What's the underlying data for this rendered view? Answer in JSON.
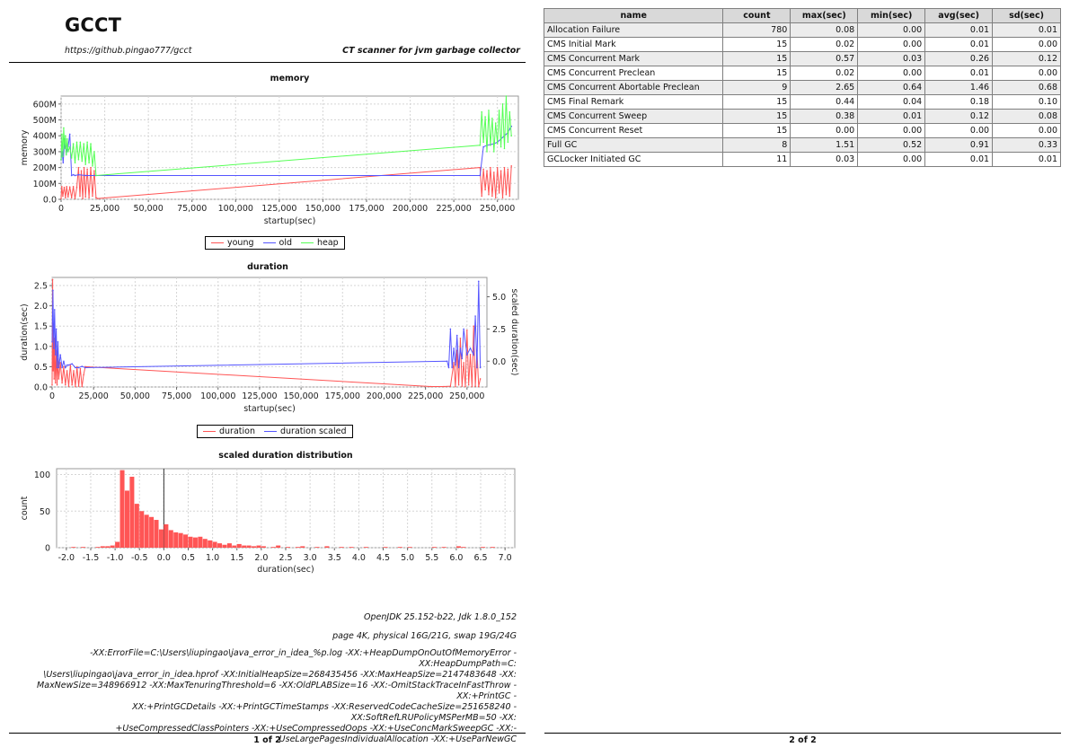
{
  "page1": {
    "title": "GCCT",
    "url": "https://github.pingao777/gcct",
    "tagline": "CT scanner for jvm garbage collector",
    "footer": "1 of 2",
    "jdk_info": "OpenJDK 25.152-b22, Jdk 1.8.0_152",
    "memory_info": "page 4K, physical 16G/21G, swap 19G/24G",
    "jvm_args_lines": [
      "-XX:ErrorFile=C:\\Users\\liupingao\\java_error_in_idea_%p.log -XX:+HeapDumpOnOutOfMemoryError -XX:HeapDumpPath=C:",
      "\\Users\\liupingao\\java_error_in_idea.hprof -XX:InitialHeapSize=268435456 -XX:MaxHeapSize=2147483648 -XX:",
      "MaxNewSize=348966912 -XX:MaxTenuringThreshold=6 -XX:OldPLABSize=16 -XX:-OmitStackTraceInFastThrow -XX:+PrintGC -",
      "XX:+PrintGCDetails -XX:+PrintGCTimeStamps -XX:ReservedCodeCacheSize=251658240 -XX:SoftRefLRUPolicyMSPerMB=50 -XX:",
      "+UseCompressedClassPointers -XX:+UseCompressedOops -XX:+UseConcMarkSweepGC -XX:-",
      "UseLargePagesIndividualAllocation -XX:+UseParNewGC"
    ]
  },
  "page2": {
    "footer": "2 of 2",
    "table": {
      "headers": [
        "name",
        "count",
        "max(sec)",
        "min(sec)",
        "avg(sec)",
        "sd(sec)"
      ],
      "rows": [
        [
          "Allocation Failure",
          "780",
          "0.08",
          "0.00",
          "0.01",
          "0.01"
        ],
        [
          "CMS Initial Mark",
          "15",
          "0.02",
          "0.00",
          "0.01",
          "0.00"
        ],
        [
          "CMS Concurrent Mark",
          "15",
          "0.57",
          "0.03",
          "0.26",
          "0.12"
        ],
        [
          "CMS Concurrent Preclean",
          "15",
          "0.02",
          "0.00",
          "0.01",
          "0.00"
        ],
        [
          "CMS Concurrent Abortable Preclean",
          "9",
          "2.65",
          "0.64",
          "1.46",
          "0.68"
        ],
        [
          "CMS Final Remark",
          "15",
          "0.44",
          "0.04",
          "0.18",
          "0.10"
        ],
        [
          "CMS Concurrent Sweep",
          "15",
          "0.38",
          "0.01",
          "0.12",
          "0.08"
        ],
        [
          "CMS Concurrent Reset",
          "15",
          "0.00",
          "0.00",
          "0.00",
          "0.00"
        ],
        [
          "Full GC",
          "8",
          "1.51",
          "0.52",
          "0.91",
          "0.33"
        ],
        [
          "GCLocker Initiated GC",
          "11",
          "0.03",
          "0.00",
          "0.01",
          "0.01"
        ]
      ]
    }
  },
  "colors": {
    "red": "#ff5555",
    "blue": "#5555ff",
    "green": "#55ff55",
    "grid": "#d0d0d0"
  },
  "chart_data": [
    {
      "type": "line",
      "title": "memory",
      "xlabel": "startup(sec)",
      "ylabel": "memory",
      "xlim": [
        0,
        262000
      ],
      "ylim": [
        0,
        650
      ],
      "xticks": [
        0,
        25000,
        50000,
        75000,
        100000,
        125000,
        150000,
        175000,
        200000,
        225000,
        250000
      ],
      "xtick_labels": [
        "0",
        "25,000",
        "50,000",
        "75,000",
        "100,000",
        "125,000",
        "150,000",
        "175,000",
        "200,000",
        "225,000",
        "250,000"
      ],
      "yticks": [
        0,
        100,
        200,
        300,
        400,
        500,
        600
      ],
      "ytick_labels": [
        "0.0",
        "100M",
        "200M",
        "300M",
        "400M",
        "500M",
        "600M"
      ],
      "legend": [
        "young",
        "old",
        "heap"
      ],
      "legend_position": "bottom",
      "series": [
        {
          "name": "young",
          "color": "#ff5555",
          "x": [
            0,
            400,
            1000,
            1800,
            2500,
            3200,
            4000,
            5000,
            6000,
            7000,
            8000,
            9000,
            10000,
            10800,
            11600,
            12400,
            13200,
            14000,
            15000,
            16000,
            17000,
            18000,
            19000,
            20000,
            21000,
            240000,
            241000,
            242000,
            243000,
            244000,
            245000,
            246000,
            247000,
            248000,
            249000,
            250000,
            251000,
            252000,
            253000,
            254000,
            255000,
            256000,
            257000,
            258000
          ],
          "y": [
            5,
            80,
            20,
            75,
            10,
            80,
            15,
            78,
            10,
            80,
            5,
            75,
            200,
            20,
            180,
            5,
            200,
            15,
            190,
            10,
            200,
            20,
            180,
            10,
            5,
            200,
            20,
            190,
            60,
            180,
            30,
            200,
            20,
            170,
            10,
            200,
            40,
            180,
            10,
            200,
            30,
            190,
            20,
            210
          ]
        },
        {
          "name": "old",
          "color": "#5555ff",
          "x": [
            0,
            600,
            1200,
            2000,
            3000,
            4000,
            5000,
            6000,
            7000,
            8000,
            10000,
            14000,
            20000,
            240000,
            242000,
            244000,
            246000,
            248000,
            250000,
            252000,
            254000,
            256000,
            258000
          ],
          "y": [
            250,
            300,
            230,
            380,
            290,
            330,
            410,
            150,
            155,
            150,
            155,
            150,
            150,
            150,
            330,
            340,
            345,
            350,
            360,
            380,
            400,
            420,
            460
          ]
        },
        {
          "name": "heap",
          "color": "#55ff55",
          "x": [
            0,
            500,
            1000,
            1500,
            2000,
            2500,
            3000,
            3500,
            4000,
            5000,
            6000,
            7000,
            8000,
            9000,
            10000,
            11000,
            12000,
            13000,
            14000,
            15000,
            16000,
            17000,
            18000,
            19000,
            20000,
            240000,
            241000,
            242000,
            243000,
            244000,
            245000,
            246000,
            247000,
            248000,
            249000,
            250000,
            251000,
            252000,
            253000,
            254000,
            255000,
            256000,
            257000,
            258000
          ],
          "y": [
            250,
            410,
            270,
            450,
            320,
            400,
            280,
            380,
            300,
            330,
            260,
            350,
            230,
            360,
            250,
            360,
            240,
            350,
            220,
            360,
            230,
            350,
            210,
            300,
            150,
            340,
            550,
            360,
            520,
            300,
            560,
            340,
            510,
            300,
            480,
            350,
            560,
            330,
            600,
            320,
            650,
            360,
            550,
            400
          ]
        }
      ]
    },
    {
      "type": "line",
      "title": "duration",
      "xlabel": "startup(sec)",
      "ylabel": "duration(sec)",
      "y2label": "scaled duration(sec)",
      "xlim": [
        0,
        262000
      ],
      "ylim": [
        0,
        2.7
      ],
      "y2lim": [
        -2,
        6.5
      ],
      "xticks": [
        0,
        25000,
        50000,
        75000,
        100000,
        125000,
        150000,
        175000,
        200000,
        225000,
        250000
      ],
      "xtick_labels": [
        "0",
        "25,000",
        "50,000",
        "75,000",
        "100,000",
        "125,000",
        "150,000",
        "175,000",
        "200,000",
        "225,000",
        "250,000"
      ],
      "yticks": [
        0,
        0.5,
        1.0,
        1.5,
        2.0,
        2.5
      ],
      "ytick_labels": [
        "0.0",
        "0.5",
        "1.0",
        "1.5",
        "2.0",
        "2.5"
      ],
      "y2ticks": [
        0,
        2.5,
        5.0
      ],
      "y2tick_labels": [
        "0.0",
        "2.5",
        "5.0"
      ],
      "legend": [
        "duration",
        "duration scaled"
      ],
      "legend_position": "bottom",
      "series": [
        {
          "name": "duration",
          "color": "#ff5555",
          "axis": "left",
          "x": [
            0,
            300,
            600,
            900,
            1200,
            1500,
            2000,
            2500,
            3000,
            3500,
            4000,
            5000,
            6000,
            7000,
            8000,
            9000,
            10000,
            11000,
            12000,
            13000,
            14000,
            15000,
            16000,
            17000,
            18000,
            19000,
            20000,
            228000,
            236000,
            240000,
            242000,
            243000,
            244000,
            245000,
            246000,
            247000,
            248000,
            249000,
            250000,
            251000,
            252000,
            253000,
            254000,
            255000,
            256000,
            257000,
            258000
          ],
          "y": [
            0.05,
            2.65,
            0.4,
            1.5,
            0.2,
            1.2,
            0.1,
            0.9,
            0.05,
            0.7,
            0.2,
            0.6,
            0.1,
            0.5,
            0.05,
            0.4,
            0.02,
            0.55,
            0.05,
            0.4,
            0.01,
            0.5,
            0.02,
            0.45,
            0.01,
            0.3,
            0.5,
            0.01,
            0.01,
            0.02,
            0.6,
            0.01,
            0.9,
            0.05,
            1.2,
            0.02,
            0.6,
            0.01,
            1.4,
            0.05,
            0.8,
            0.01,
            1.5,
            0.02,
            0.9,
            0.01,
            0.2
          ]
        },
        {
          "name": "duration scaled",
          "color": "#5555ff",
          "axis": "right",
          "x": [
            0,
            500,
            1000,
            1500,
            2000,
            2500,
            3000,
            3500,
            4000,
            5000,
            6000,
            7000,
            8000,
            9000,
            10000,
            12000,
            14000,
            16000,
            18000,
            20000,
            238000,
            239000,
            240000,
            241000,
            242000,
            243000,
            244000,
            245000,
            246000,
            247000,
            248000,
            250000,
            252000,
            254000,
            255000,
            256000,
            257000,
            258000
          ],
          "y": [
            1.5,
            5.5,
            1.0,
            4.0,
            0.5,
            2.5,
            -0.5,
            1.5,
            -0.5,
            0.5,
            -0.5,
            0.0,
            -0.5,
            -0.3,
            -0.3,
            -0.2,
            -0.5,
            -0.5,
            -0.4,
            -0.5,
            0.0,
            -0.5,
            2.5,
            -0.5,
            1.0,
            -0.3,
            2.0,
            -0.5,
            1.0,
            0.2,
            2.5,
            0.5,
            1.0,
            0.5,
            3.5,
            -0.5,
            6.2,
            -0.5
          ]
        }
      ]
    },
    {
      "type": "bar",
      "title": "scaled duration distribution",
      "xlabel": "duration(sec)",
      "ylabel": "count",
      "xlim": [
        -2.2,
        7.2
      ],
      "ylim": [
        0,
        108
      ],
      "xticks": [
        -2.0,
        -1.5,
        -1.0,
        -0.5,
        0.0,
        0.5,
        1.0,
        1.5,
        2.0,
        2.5,
        3.0,
        3.5,
        4.0,
        4.5,
        5.0,
        5.5,
        6.0,
        6.5,
        7.0
      ],
      "xtick_labels": [
        "-2.0",
        "-1.5",
        "-1.0",
        "-0.5",
        "0.0",
        "0.5",
        "1.0",
        "1.5",
        "2.0",
        "2.5",
        "3.0",
        "3.5",
        "4.0",
        "4.5",
        "5.0",
        "5.5",
        "6.0",
        "6.5",
        "7.0"
      ],
      "yticks": [
        0,
        50,
        100
      ],
      "ytick_labels": [
        "0",
        "50",
        "100"
      ],
      "bin_width": 0.1,
      "bins": [
        -1.9,
        -1.7,
        -1.4,
        -1.3,
        -1.2,
        -1.1,
        -1.0,
        -0.9,
        -0.8,
        -0.7,
        -0.6,
        -0.5,
        -0.4,
        -0.3,
        -0.2,
        -0.1,
        0.0,
        0.1,
        0.2,
        0.3,
        0.4,
        0.5,
        0.6,
        0.7,
        0.8,
        0.9,
        1.0,
        1.1,
        1.2,
        1.3,
        1.4,
        1.5,
        1.6,
        1.7,
        1.8,
        1.9,
        2.0,
        2.2,
        2.3,
        2.5,
        2.7,
        2.8,
        3.1,
        3.3,
        3.6,
        3.8,
        4.1,
        4.5,
        4.8,
        5.0,
        5.5,
        5.7,
        6.0,
        6.1,
        6.5,
        6.7
      ],
      "values": [
        1,
        1,
        1,
        2,
        2,
        3,
        8,
        106,
        78,
        97,
        60,
        50,
        45,
        42,
        38,
        25,
        32,
        24,
        21,
        20,
        18,
        15,
        14,
        15,
        12,
        10,
        8,
        6,
        4,
        6,
        3,
        5,
        3,
        3,
        2,
        3,
        2,
        1,
        3,
        1,
        1,
        2,
        1,
        2,
        1,
        1,
        1,
        1,
        1,
        1,
        1,
        1,
        2,
        1,
        1,
        1
      ]
    }
  ]
}
